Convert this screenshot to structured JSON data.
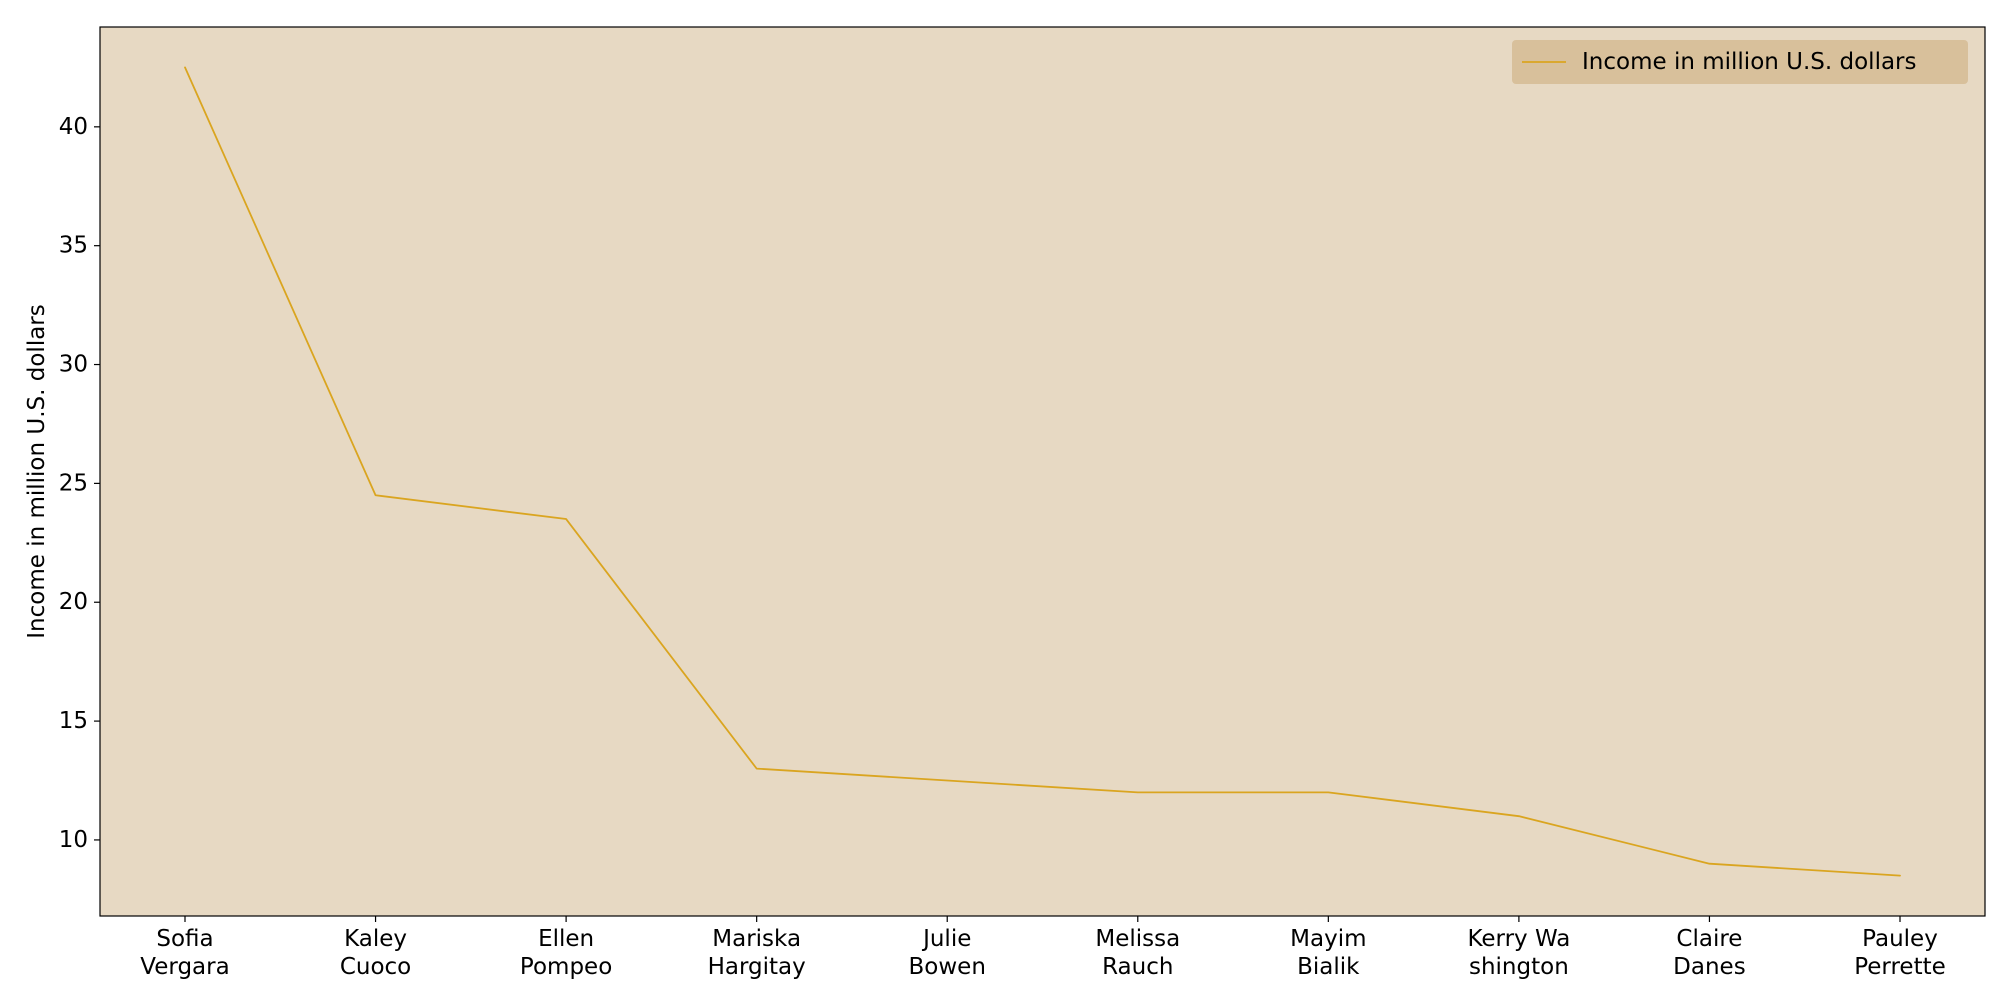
{
  "chart_data": {
    "type": "line",
    "categories": [
      "Sofia Vergara",
      "Kaley Cuoco",
      "Ellen Pompeo",
      "Mariska Hargitay",
      "Julie Bowen",
      "Melissa Rauch",
      "Mayim Bialik",
      "Kerry Washington",
      "Claire Danes",
      "Pauley Perrette"
    ],
    "category_label_lines": [
      [
        "Sofia",
        "Vergara"
      ],
      [
        "Kaley",
        "Cuoco"
      ],
      [
        "Ellen",
        "Pompeo"
      ],
      [
        "Mariska",
        "Hargitay"
      ],
      [
        "Julie",
        "Bowen"
      ],
      [
        "Melissa",
        "Rauch"
      ],
      [
        "Mayim",
        "Bialik"
      ],
      [
        "Kerry Wa",
        "shington"
      ],
      [
        "Claire",
        "Danes"
      ],
      [
        "Pauley",
        "Perrette"
      ]
    ],
    "series": [
      {
        "name": "Income in million U.S. dollars",
        "values": [
          42.5,
          24.5,
          23.5,
          13,
          12.5,
          12,
          12,
          11,
          9,
          8.5
        ],
        "color": "#daa520"
      }
    ],
    "title": "",
    "xlabel": "",
    "ylabel": "Income in million U.S. dollars",
    "ylim": [
      6.8,
      44.2
    ],
    "yticks": [
      10,
      15,
      20,
      25,
      30,
      35,
      40
    ],
    "grid": false,
    "legend_position": "top-right",
    "plot_background": "#e7d9c3",
    "legend_background": "#d5b991"
  }
}
